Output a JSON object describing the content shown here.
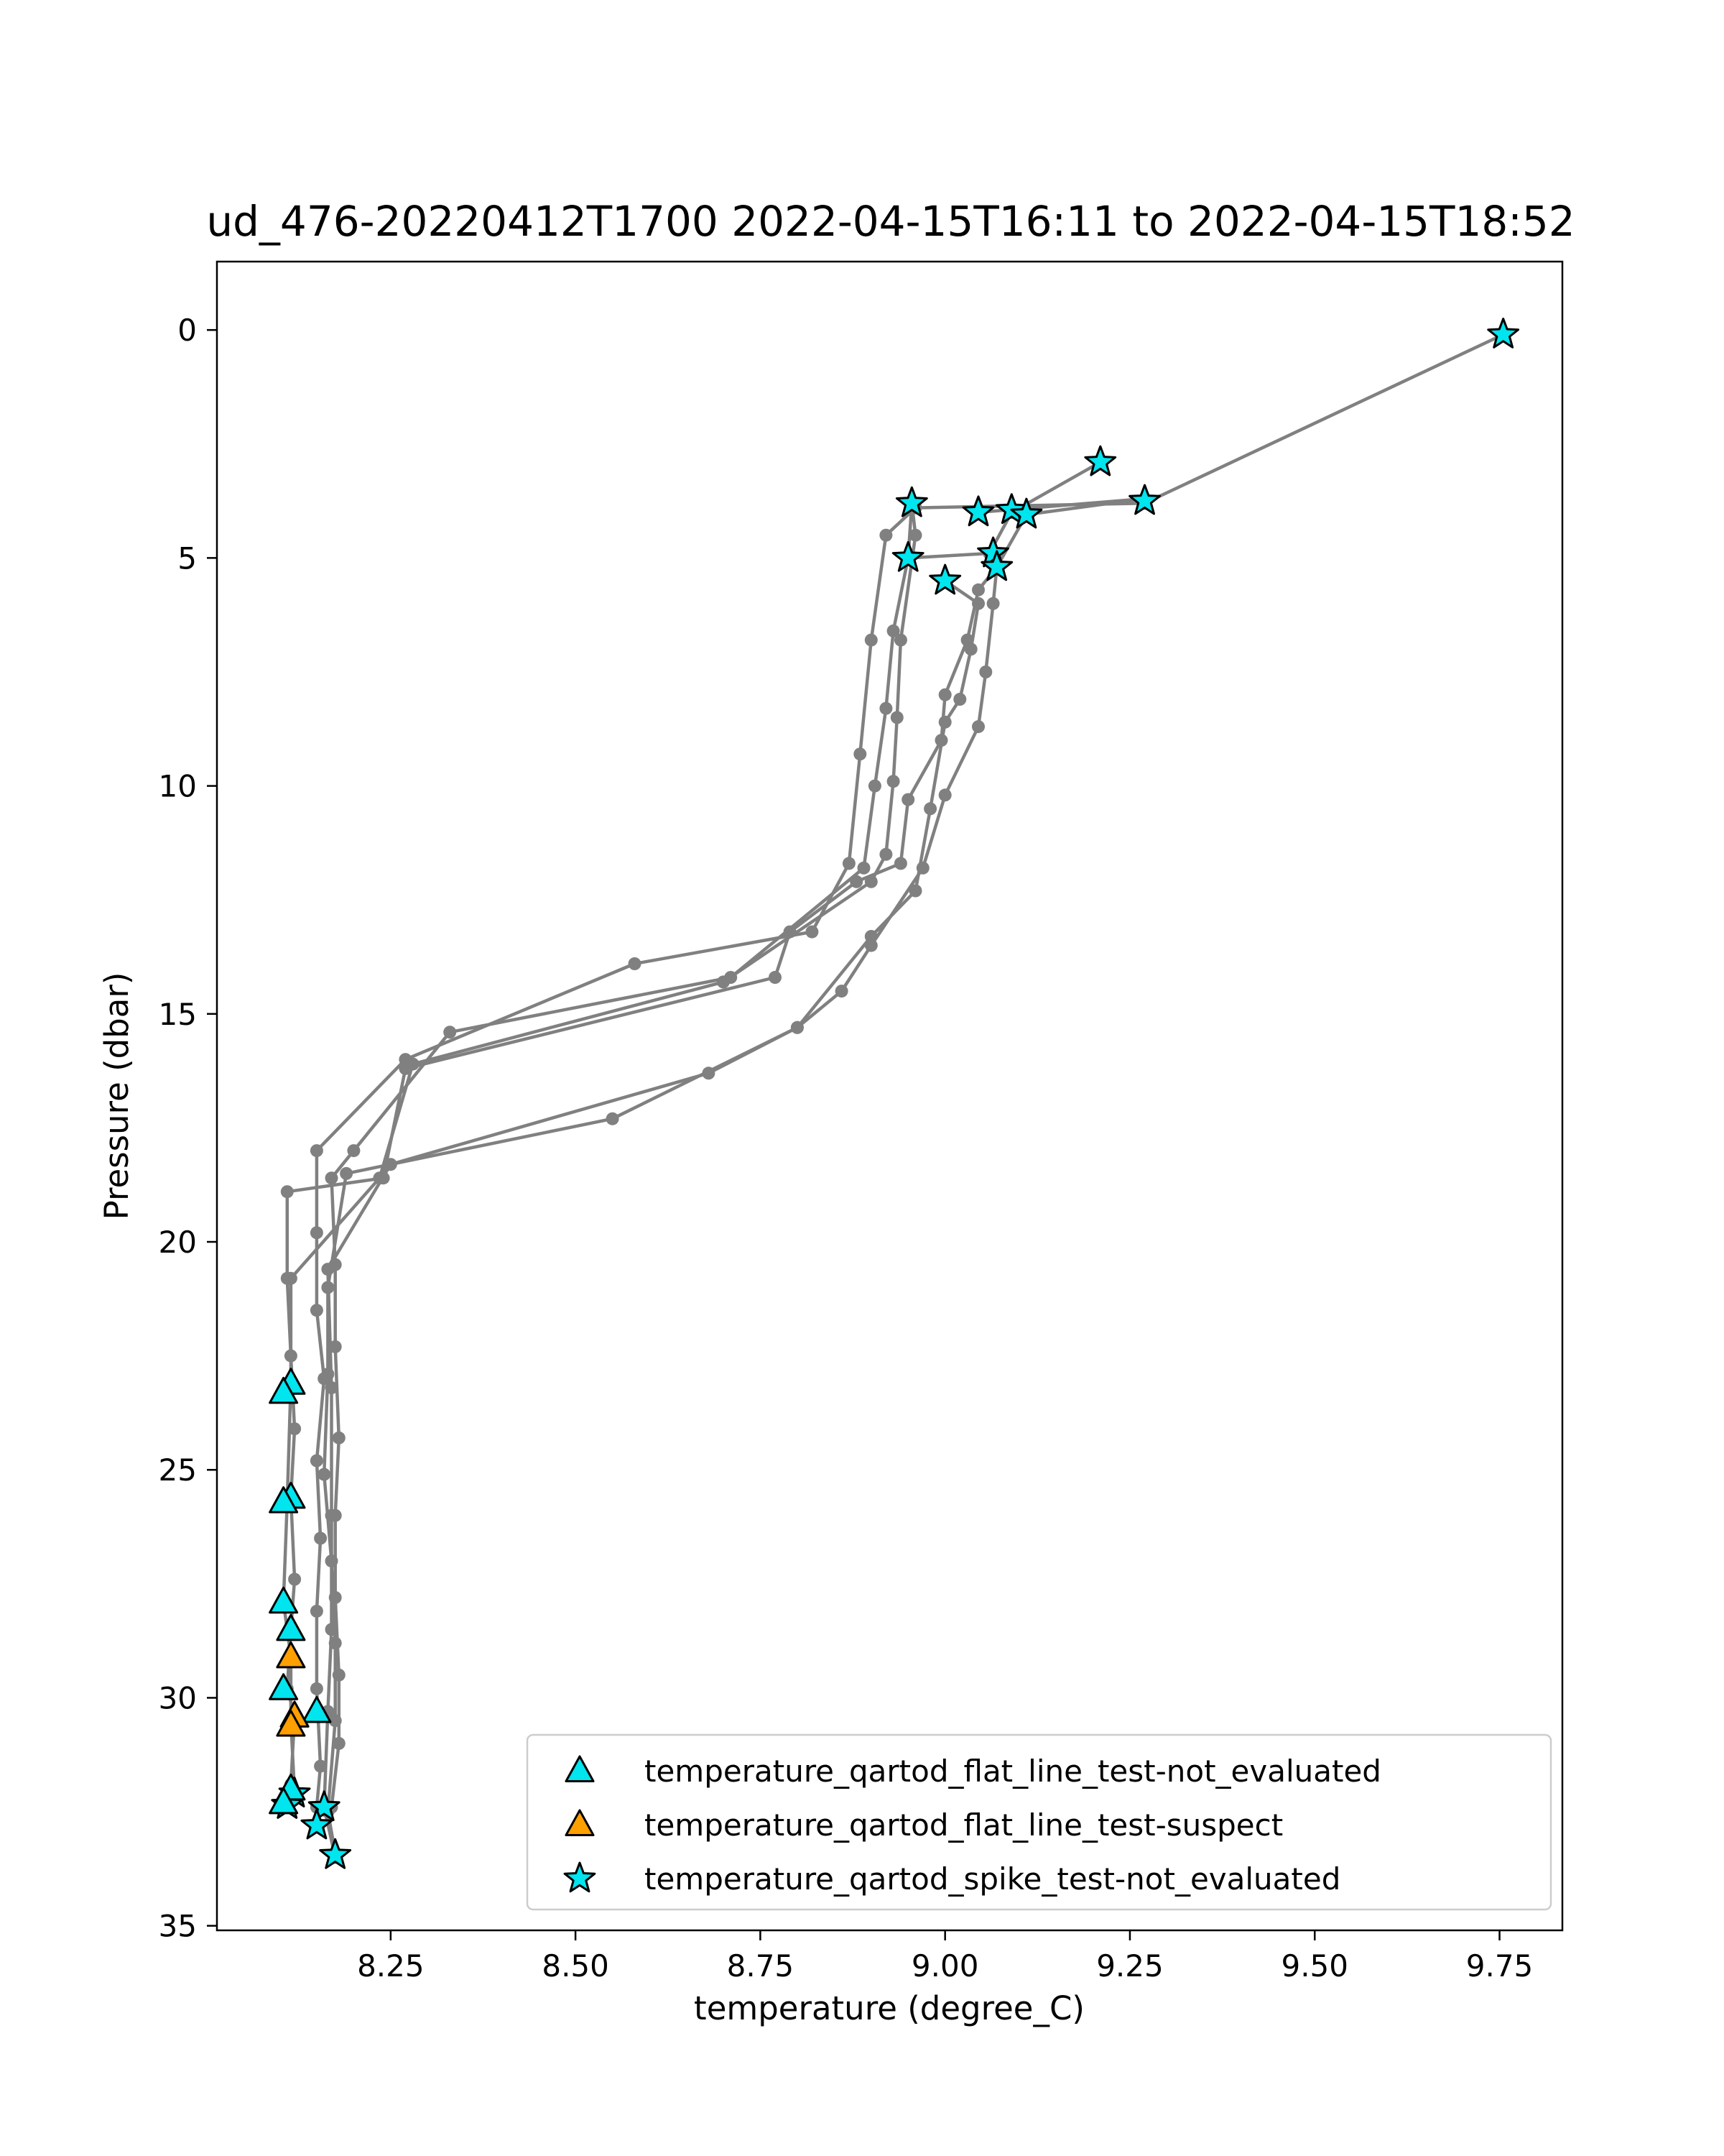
{
  "chart_data": {
    "type": "line",
    "title": "ud_476-20220412T1700 2022-04-15T16:11 to 2022-04-15T18:52",
    "xlabel": "temperature (degree_C)",
    "ylabel": "Pressure (dbar)",
    "xlim": [
      8.015,
      9.835
    ],
    "ylim": [
      35.1,
      -1.5
    ],
    "y_inverted": true,
    "grid": false,
    "xticks": [
      {
        "value": 8.25,
        "label": "8.25"
      },
      {
        "value": 8.5,
        "label": "8.50"
      },
      {
        "value": 8.75,
        "label": "8.75"
      },
      {
        "value": 9.0,
        "label": "9.00"
      },
      {
        "value": 9.25,
        "label": "9.25"
      },
      {
        "value": 9.5,
        "label": "9.50"
      },
      {
        "value": 9.75,
        "label": "9.75"
      }
    ],
    "yticks": [
      {
        "value": 0,
        "label": "0"
      },
      {
        "value": 5,
        "label": "5"
      },
      {
        "value": 10,
        "label": "10"
      },
      {
        "value": 15,
        "label": "15"
      },
      {
        "value": 20,
        "label": "20"
      },
      {
        "value": 25,
        "label": "25"
      },
      {
        "value": 30,
        "label": "30"
      },
      {
        "value": 35,
        "label": "35"
      }
    ],
    "line_color": "#808080",
    "profiles": [
      [
        [
          9.755,
          0.1
        ],
        [
          9.27,
          3.8
        ],
        [
          8.96,
          3.9
        ],
        [
          8.92,
          4.5
        ],
        [
          8.9,
          6.8
        ],
        [
          8.885,
          9.3
        ],
        [
          8.87,
          11.7
        ],
        [
          8.82,
          13.2
        ],
        [
          8.58,
          13.9
        ],
        [
          8.27,
          16.0
        ],
        [
          8.15,
          18.0
        ],
        [
          8.15,
          19.8
        ],
        [
          8.15,
          21.5
        ],
        [
          8.16,
          23.0
        ],
        [
          8.15,
          24.8
        ],
        [
          8.155,
          26.5
        ],
        [
          8.15,
          28.1
        ],
        [
          8.15,
          29.8
        ],
        [
          8.155,
          31.5
        ],
        [
          8.15,
          32.4
        ],
        [
          8.15,
          32.8
        ]
      ],
      [
        [
          9.21,
          2.9
        ],
        [
          9.09,
          4.0
        ],
        [
          9.06,
          4.9
        ],
        [
          8.95,
          5.0
        ],
        [
          8.93,
          6.6
        ],
        [
          8.92,
          8.3
        ],
        [
          8.905,
          10.0
        ],
        [
          8.89,
          11.8
        ],
        [
          8.71,
          14.2
        ],
        [
          8.33,
          15.4
        ],
        [
          8.2,
          18.0
        ],
        [
          8.17,
          18.6
        ],
        [
          8.175,
          20.5
        ],
        [
          8.175,
          22.3
        ],
        [
          8.18,
          24.3
        ],
        [
          8.175,
          26.0
        ],
        [
          8.175,
          27.8
        ],
        [
          8.18,
          29.5
        ],
        [
          8.18,
          31.0
        ],
        [
          8.17,
          32.4
        ]
      ],
      [
        [
          9.045,
          4.0
        ],
        [
          9.27,
          3.7
        ],
        [
          9.11,
          4.05
        ],
        [
          9.07,
          5.2
        ],
        [
          9.045,
          5.7
        ],
        [
          9.03,
          6.8
        ],
        [
          9.0,
          8.0
        ],
        [
          8.995,
          9.0
        ],
        [
          8.95,
          10.3
        ],
        [
          8.94,
          11.7
        ],
        [
          8.88,
          12.1
        ],
        [
          8.79,
          13.2
        ],
        [
          8.77,
          14.2
        ],
        [
          8.27,
          16.2
        ],
        [
          8.24,
          18.6
        ],
        [
          8.11,
          18.9
        ],
        [
          8.11,
          20.8
        ],
        [
          8.115,
          22.5
        ],
        [
          8.12,
          24.1
        ],
        [
          8.115,
          25.6
        ],
        [
          8.12,
          27.4
        ],
        [
          8.115,
          28.5
        ],
        [
          8.11,
          29.8
        ],
        [
          8.12,
          30.4
        ],
        [
          8.115,
          31.9
        ],
        [
          8.11,
          32.3
        ]
      ],
      [
        [
          8.95,
          5.0
        ],
        [
          8.955,
          3.8
        ],
        [
          8.96,
          4.5
        ],
        [
          8.94,
          6.8
        ],
        [
          8.935,
          8.5
        ],
        [
          8.93,
          9.9
        ],
        [
          8.92,
          11.5
        ],
        [
          8.9,
          12.1
        ],
        [
          8.7,
          14.3
        ],
        [
          8.28,
          16.1
        ],
        [
          8.235,
          18.6
        ],
        [
          8.115,
          20.8
        ],
        [
          8.115,
          23.1
        ],
        [
          8.11,
          25.7
        ],
        [
          8.105,
          27.9
        ],
        [
          8.115,
          29.1
        ],
        [
          8.115,
          30.5
        ],
        [
          8.12,
          32.1
        ],
        [
          8.12,
          32.2
        ]
      ],
      [
        [
          9.07,
          5.2
        ],
        [
          9.065,
          6.0
        ],
        [
          9.055,
          7.5
        ],
        [
          9.045,
          8.7
        ],
        [
          9.0,
          10.2
        ],
        [
          8.97,
          11.8
        ],
        [
          8.9,
          13.5
        ],
        [
          8.86,
          14.5
        ],
        [
          8.8,
          15.3
        ],
        [
          8.68,
          16.3
        ],
        [
          8.25,
          18.3
        ],
        [
          8.165,
          20.6
        ],
        [
          8.17,
          23.2
        ],
        [
          8.17,
          26.0
        ],
        [
          8.17,
          28.5
        ],
        [
          8.165,
          30.3
        ],
        [
          8.16,
          32.4
        ],
        [
          8.175,
          33.5
        ]
      ],
      [
        [
          9.0,
          5.5
        ],
        [
          9.045,
          6.0
        ],
        [
          9.035,
          7.0
        ],
        [
          9.02,
          8.1
        ],
        [
          9.0,
          8.6
        ],
        [
          8.98,
          10.5
        ],
        [
          8.96,
          12.3
        ],
        [
          8.9,
          13.3
        ],
        [
          8.8,
          15.3
        ],
        [
          8.55,
          17.3
        ],
        [
          8.19,
          18.5
        ],
        [
          8.165,
          21.0
        ],
        [
          8.165,
          22.9
        ],
        [
          8.16,
          25.1
        ],
        [
          8.17,
          27.0
        ],
        [
          8.175,
          28.8
        ],
        [
          8.175,
          30.5
        ],
        [
          8.165,
          32.5
        ],
        [
          8.175,
          33.4
        ]
      ]
    ],
    "markers": [
      {
        "series": "temperature_qartod_spike_test-not_evaluated",
        "points": [
          [
            9.755,
            0.1
          ],
          [
            9.21,
            2.9
          ],
          [
            9.27,
            3.75
          ],
          [
            8.955,
            3.8
          ],
          [
            9.045,
            4.0
          ],
          [
            9.09,
            3.95
          ],
          [
            9.11,
            4.05
          ],
          [
            8.95,
            5.0
          ],
          [
            9.065,
            4.9
          ],
          [
            9.07,
            5.2
          ],
          [
            9.0,
            5.5
          ],
          [
            8.12,
            32.1
          ],
          [
            8.11,
            32.35
          ],
          [
            8.16,
            32.4
          ],
          [
            8.15,
            32.8
          ],
          [
            8.175,
            33.45
          ]
        ]
      },
      {
        "series": "temperature_qartod_flat_line_test-not_evaluated",
        "points": [
          [
            8.115,
            23.1
          ],
          [
            8.105,
            23.3
          ],
          [
            8.115,
            25.6
          ],
          [
            8.105,
            25.7
          ],
          [
            8.105,
            27.9
          ],
          [
            8.115,
            28.5
          ],
          [
            8.105,
            29.8
          ],
          [
            8.15,
            30.3
          ],
          [
            8.115,
            32.0
          ],
          [
            8.105,
            32.3
          ]
        ]
      },
      {
        "series": "temperature_qartod_flat_line_test-suspect",
        "points": [
          [
            8.115,
            29.1
          ],
          [
            8.12,
            30.4
          ],
          [
            8.115,
            30.6
          ]
        ]
      }
    ],
    "legend": {
      "placement": "lower-right",
      "entries": [
        {
          "label": "temperature_qartod_flat_line_test-not_evaluated",
          "marker": "triangle",
          "color": "#00e5ee"
        },
        {
          "label": "temperature_qartod_flat_line_test-suspect",
          "marker": "triangle",
          "color": "#ff9f00"
        },
        {
          "label": "temperature_qartod_spike_test-not_evaluated",
          "marker": "star",
          "color": "#00e5ee"
        }
      ]
    }
  }
}
